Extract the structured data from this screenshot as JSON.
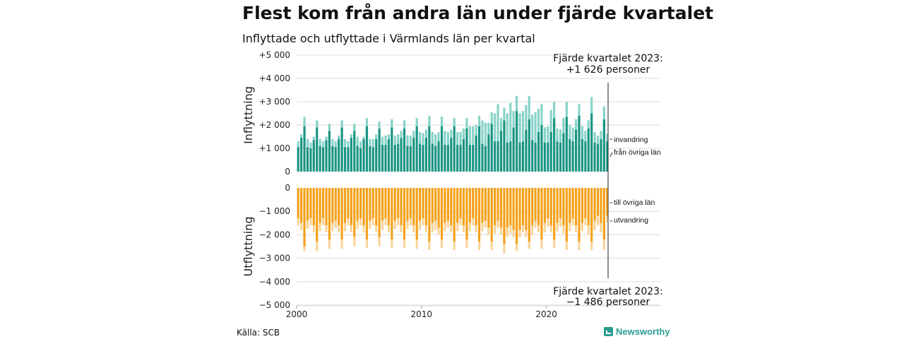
{
  "title": "Flest kom från andra län under fjärde kvartalet",
  "subtitle": "Inflyttade och utflyttade i Värmlands län per kvartal",
  "source": "Källa: SCB",
  "brand": "Newsworthy",
  "colors": {
    "fran_ovriga_lan": "#1a9482",
    "invandring": "#88d3c8",
    "till_ovriga_lan": "#f4a11a",
    "utvandring": "#f9d49a"
  },
  "chart_data": {
    "type": "bar",
    "stacked": true,
    "x_start": 2000,
    "x_ticks": [
      "2000",
      "2010",
      "2020"
    ],
    "top": {
      "ylabel": "Inflyttning",
      "ylim": [
        0,
        5000
      ],
      "y_ticks": [
        "0",
        "+1 000",
        "+2 000",
        "+3 000",
        "+4 000",
        "+5 000"
      ],
      "series": [
        {
          "name": "från övriga län",
          "values": [
            1050,
            1450,
            1950,
            1050,
            1000,
            1350,
            1900,
            1100,
            1050,
            1350,
            1750,
            1100,
            1050,
            1400,
            1900,
            1050,
            1050,
            1450,
            1750,
            1100,
            1000,
            1400,
            1950,
            1100,
            1050,
            1400,
            1850,
            1150,
            1150,
            1400,
            1900,
            1150,
            1200,
            1450,
            1850,
            1100,
            1100,
            1450,
            1950,
            1200,
            1150,
            1450,
            1950,
            1200,
            1100,
            1300,
            1950,
            1150,
            1150,
            1450,
            1950,
            1150,
            1150,
            1400,
            1850,
            1150,
            1150,
            1550,
            1950,
            1200,
            1100,
            1600,
            2050,
            1300,
            1300,
            1750,
            2200,
            1250,
            1300,
            1900,
            2600,
            1250,
            1300,
            1800,
            2250,
            1350,
            1250,
            1700,
            2000,
            1250,
            1250,
            1700,
            2300,
            1300,
            1250,
            1650,
            2350,
            1400,
            1300,
            1800,
            2400,
            1400,
            1300,
            1850,
            2500,
            1250,
            1200,
            1400,
            2250,
            1300
          ]
        },
        {
          "name": "invandring",
          "values": [
            250,
            150,
            400,
            350,
            250,
            150,
            300,
            300,
            250,
            150,
            300,
            300,
            250,
            150,
            300,
            350,
            250,
            150,
            300,
            400,
            300,
            100,
            350,
            300,
            350,
            200,
            300,
            350,
            400,
            200,
            350,
            400,
            400,
            300,
            350,
            450,
            450,
            300,
            350,
            500,
            500,
            350,
            450,
            500,
            500,
            400,
            400,
            600,
            550,
            350,
            350,
            550,
            550,
            450,
            450,
            800,
            800,
            450,
            450,
            1000,
            1000,
            500,
            500,
            1200,
            1600,
            550,
            550,
            1250,
            1650,
            700,
            650,
            1250,
            1300,
            1050,
            1000,
            1100,
            1300,
            1000,
            900,
            650,
            700,
            950,
            700,
            550,
            550,
            650,
            650,
            600,
            600,
            450,
            500,
            550,
            450,
            350,
            700,
            450,
            350,
            350,
            550,
            326
          ]
        }
      ]
    },
    "bottom": {
      "ylabel": "Utflyttning",
      "ylim": [
        -5000,
        0
      ],
      "y_ticks": [
        "0",
        "−1 000",
        "−2 000",
        "−3 000",
        "−4 000",
        "−5 000"
      ],
      "series": [
        {
          "name": "till övriga län",
          "values": [
            -1300,
            -1500,
            -2500,
            -1400,
            -1300,
            -1600,
            -2300,
            -1500,
            -1300,
            -1600,
            -2200,
            -1500,
            -1400,
            -1600,
            -2200,
            -1500,
            -1300,
            -1600,
            -2100,
            -1400,
            -1300,
            -1600,
            -2200,
            -1400,
            -1300,
            -1600,
            -2100,
            -1400,
            -1300,
            -1600,
            -2200,
            -1400,
            -1300,
            -1600,
            -2200,
            -1400,
            -1300,
            -1600,
            -2200,
            -1400,
            -1300,
            -1600,
            -2300,
            -1500,
            -1400,
            -1700,
            -2200,
            -1500,
            -1400,
            -1600,
            -2300,
            -1500,
            -1300,
            -1600,
            -2200,
            -1500,
            -1300,
            -1600,
            -2300,
            -1500,
            -1400,
            -1700,
            -2300,
            -1600,
            -1400,
            -1700,
            -2400,
            -1700,
            -1600,
            -1800,
            -2400,
            -1800,
            -1600,
            -1800,
            -2300,
            -1600,
            -1400,
            -1600,
            -2200,
            -1500,
            -1300,
            -1600,
            -2200,
            -1500,
            -1300,
            -1600,
            -2300,
            -1500,
            -1300,
            -1600,
            -2300,
            -1500,
            -1300,
            -1600,
            -2300,
            -1400,
            -1200,
            -1500,
            -2200,
            -1200
          ]
        },
        {
          "name": "utvandring",
          "values": [
            -300,
            -300,
            -200,
            -350,
            -300,
            -300,
            -400,
            -350,
            -300,
            -300,
            -400,
            -350,
            -300,
            -300,
            -400,
            -350,
            -300,
            -300,
            -400,
            -350,
            -300,
            -300,
            -350,
            -350,
            -300,
            -300,
            -400,
            -400,
            -300,
            -300,
            -350,
            -350,
            -300,
            -300,
            -350,
            -350,
            -300,
            -300,
            -400,
            -400,
            -300,
            -300,
            -350,
            -400,
            -400,
            -300,
            -350,
            -350,
            -300,
            -300,
            -350,
            -350,
            -300,
            -300,
            -350,
            -350,
            -300,
            -300,
            -350,
            -350,
            -300,
            -300,
            -350,
            -350,
            -300,
            -300,
            -400,
            -400,
            -350,
            -300,
            -300,
            -300,
            -300,
            -300,
            -300,
            -400,
            -300,
            -300,
            -400,
            -400,
            -350,
            -300,
            -350,
            -350,
            -350,
            -350,
            -350,
            -350,
            -300,
            -300,
            -350,
            -350,
            -300,
            -400,
            -350,
            -400,
            -400,
            -400,
            -450,
            -286
          ]
        }
      ]
    },
    "annotations": {
      "top": [
        "Fjärde kvartalet 2023:",
        "+1 626 personer"
      ],
      "bottom": [
        "Fjärde kvartalet 2023:",
        "−1 486 personer"
      ]
    }
  }
}
